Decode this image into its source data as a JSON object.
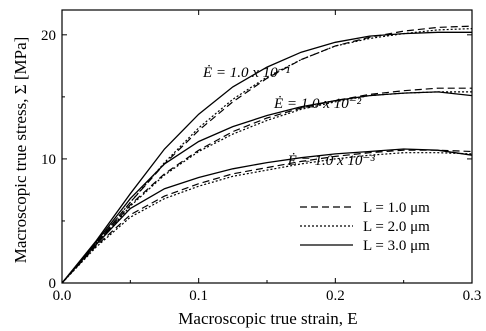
{
  "chart_data": {
    "type": "line",
    "xlabel": "Macroscopic true strain, E",
    "ylabel": "Macroscopic true stress, Σ [MPa]",
    "xlim": [
      0,
      0.3
    ],
    "ylim": [
      0,
      22
    ],
    "xticks": [
      0.0,
      0.1,
      0.2,
      0.3
    ],
    "xtick_labels": [
      "0.0",
      "0.1",
      "0.2",
      "0.3"
    ],
    "yticks": [
      0,
      10,
      20
    ],
    "ytick_labels": [
      "0",
      "10",
      "20"
    ],
    "grid": false,
    "legend_position": "bottom-right",
    "legend": [
      {
        "label": "L = 1.0 μm",
        "style": "dashed"
      },
      {
        "label": "L = 2.0 μm",
        "style": "dotted"
      },
      {
        "label": "L = 3.0 μm",
        "style": "solid"
      }
    ],
    "annotations": [
      {
        "text": "Ė = 1.0 x 10⁻¹",
        "x": 0.135,
        "y": 16.6
      },
      {
        "text": "Ė = 1.0 x 10⁻²",
        "x": 0.187,
        "y": 14.1
      },
      {
        "text": "Ė = 1.0 x 10⁻³",
        "x": 0.197,
        "y": 9.5
      }
    ],
    "x": [
      0.0,
      0.025,
      0.05,
      0.075,
      0.1,
      0.125,
      0.15,
      0.175,
      0.2,
      0.225,
      0.25,
      0.275,
      0.3
    ],
    "series": [
      {
        "rate": "1.0 x 10^-1",
        "L": "1.0 μm",
        "style": "dashed",
        "values": [
          0,
          3.2,
          6.5,
          9.6,
          12.3,
          14.6,
          16.5,
          18.0,
          19.1,
          19.8,
          20.3,
          20.6,
          20.7
        ]
      },
      {
        "rate": "1.0 x 10^-1",
        "L": "2.0 μm",
        "style": "dotted",
        "values": [
          0,
          3.2,
          6.5,
          9.7,
          12.5,
          14.8,
          16.6,
          18.0,
          19.1,
          19.7,
          20.1,
          20.4,
          20.5
        ]
      },
      {
        "rate": "1.0 x 10^-1",
        "L": "3.0 μm",
        "style": "solid",
        "values": [
          0,
          3.4,
          7.2,
          10.8,
          13.6,
          15.8,
          17.4,
          18.6,
          19.4,
          19.9,
          20.1,
          20.2,
          20.2
        ]
      },
      {
        "rate": "1.0 x 10^-2",
        "L": "1.0 μm",
        "style": "dashed",
        "values": [
          0,
          3.1,
          6.3,
          8.8,
          10.7,
          12.2,
          13.3,
          14.1,
          14.7,
          15.2,
          15.5,
          15.7,
          15.7
        ]
      },
      {
        "rate": "1.0 x 10^-2",
        "L": "2.0 μm",
        "style": "dotted",
        "values": [
          0,
          3.1,
          6.2,
          8.7,
          10.6,
          12.0,
          13.1,
          14.0,
          14.6,
          15.1,
          15.3,
          15.4,
          15.4
        ]
      },
      {
        "rate": "1.0 x 10^-2",
        "L": "3.0 μm",
        "style": "solid",
        "values": [
          0,
          3.3,
          6.8,
          9.6,
          11.4,
          12.6,
          13.5,
          14.2,
          14.7,
          15.1,
          15.3,
          15.4,
          15.1
        ]
      },
      {
        "rate": "1.0 x 10^-3",
        "L": "1.0 μm",
        "style": "dashed",
        "values": [
          0,
          3.0,
          5.5,
          7.0,
          8.0,
          8.8,
          9.3,
          9.8,
          10.2,
          10.5,
          10.7,
          10.7,
          10.6
        ]
      },
      {
        "rate": "1.0 x 10^-3",
        "L": "2.0 μm",
        "style": "dotted",
        "values": [
          0,
          2.9,
          5.3,
          6.8,
          7.8,
          8.6,
          9.1,
          9.6,
          10.0,
          10.3,
          10.5,
          10.5,
          10.4
        ]
      },
      {
        "rate": "1.0 x 10^-3",
        "L": "3.0 μm",
        "style": "solid",
        "values": [
          0,
          3.1,
          6.0,
          7.6,
          8.5,
          9.2,
          9.7,
          10.1,
          10.4,
          10.6,
          10.8,
          10.7,
          10.3
        ]
      }
    ]
  }
}
